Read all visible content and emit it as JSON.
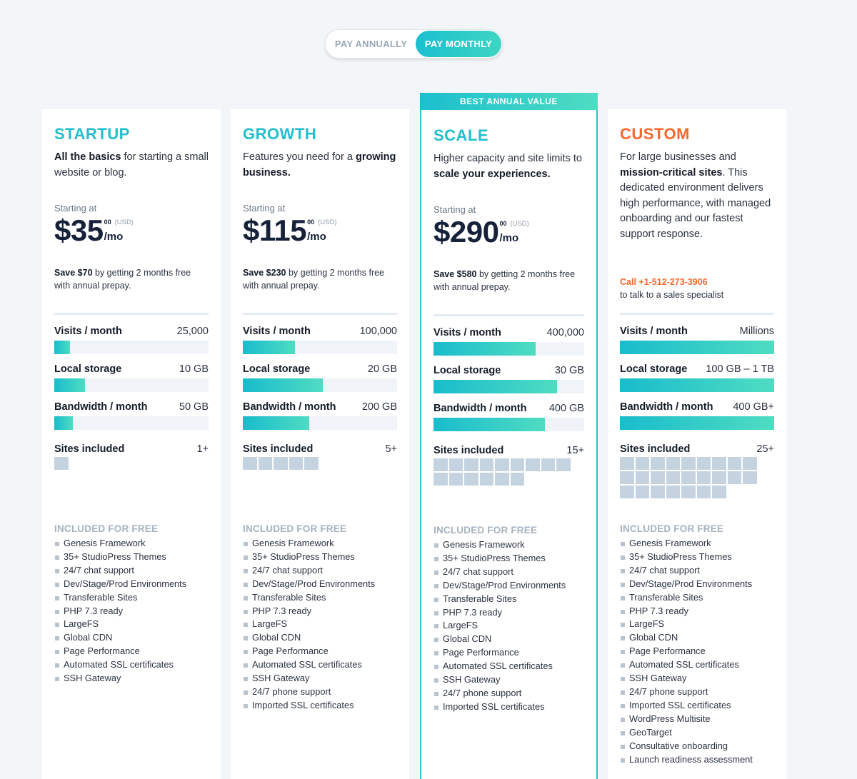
{
  "billing_toggle": {
    "annual_label": "PAY ANNUALLY",
    "monthly_label": "PAY MONTHLY",
    "selected": "monthly"
  },
  "colors": {
    "accent_teal": "#21bfcc",
    "accent_orange": "#f5672d",
    "bar_gradient_start": "#19bccd",
    "bar_gradient_end": "#4fdcc2",
    "site_block": "#c5d3e0"
  },
  "metric_labels": {
    "visits": "Visits / month",
    "storage": "Local storage",
    "bandwidth": "Bandwidth / month",
    "sites": "Sites included"
  },
  "included_title": "INCLUDED FOR FREE",
  "starting_label": "Starting at",
  "plans": [
    {
      "name": "STARTUP",
      "desc_bold": "All the basics",
      "desc_rest": " for starting a small website or blog.",
      "price": "$35",
      "cents": "00",
      "currency": "(USD)",
      "per": "/mo",
      "save_bold": "Save $70",
      "save_rest": " by getting 2 months free with annual prepay.",
      "visits": "25,000",
      "visits_pct": 10,
      "storage": "10 GB",
      "storage_pct": 20,
      "bandwidth": "50 GB",
      "bandwidth_pct": 12,
      "sites": "1+",
      "site_blocks": 1,
      "features": [
        "Genesis Framework",
        "35+ StudioPress Themes",
        "24/7 chat support",
        "Dev/Stage/Prod Environments",
        "Transferable Sites",
        "PHP 7.3 ready",
        "LargeFS",
        "Global CDN",
        "Page Performance",
        "Automated SSL certificates",
        "SSH Gateway"
      ]
    },
    {
      "name": "GROWTH",
      "desc_pre": "Features you need for a ",
      "desc_bold": "growing business.",
      "price": "$115",
      "cents": "00",
      "currency": "(USD)",
      "per": "/mo",
      "save_bold": "Save $230",
      "save_rest": " by getting 2 months free with annual prepay.",
      "visits": "100,000",
      "visits_pct": 34,
      "storage": "20 GB",
      "storage_pct": 52,
      "bandwidth": "200 GB",
      "bandwidth_pct": 43,
      "sites": "5+",
      "site_blocks": 5,
      "features": [
        "Genesis Framework",
        "35+ StudioPress Themes",
        "24/7 chat support",
        "Dev/Stage/Prod Environments",
        "Transferable Sites",
        "PHP 7.3 ready",
        "LargeFS",
        "Global CDN",
        "Page Performance",
        "Automated SSL certificates",
        "SSH Gateway",
        "24/7 phone support",
        "Imported SSL certificates"
      ]
    },
    {
      "name": "SCALE",
      "banner": "BEST ANNUAL VALUE",
      "desc_pre": "Higher capacity and site limits to ",
      "desc_bold": "scale your experiences.",
      "price": "$290",
      "cents": "00",
      "currency": "(USD)",
      "per": "/mo",
      "save_bold": "Save $580",
      "save_rest": " by getting 2 months free with annual prepay.",
      "visits": "400,000",
      "visits_pct": 68,
      "storage": "30 GB",
      "storage_pct": 82,
      "bandwidth": "400 GB",
      "bandwidth_pct": 74,
      "sites": "15+",
      "site_blocks": 15,
      "features": [
        "Genesis Framework",
        "35+ StudioPress Themes",
        "24/7 chat support",
        "Dev/Stage/Prod Environments",
        "Transferable Sites",
        "PHP 7.3 ready",
        "LargeFS",
        "Global CDN",
        "Page Performance",
        "Automated SSL certificates",
        "SSH Gateway",
        "24/7 phone support",
        "Imported SSL certificates"
      ]
    },
    {
      "name": "CUSTOM",
      "desc_pre": "For large businesses and ",
      "desc_bold": "mission-critical sites",
      "desc_rest": ". This dedicated environment delivers high performance, with managed onboarding and our fastest support response.",
      "call_phone": "Call +1-512-273-3906",
      "call_rest": "to talk to a sales specialist",
      "visits": "Millions",
      "visits_pct": 100,
      "storage": "100 GB – 1 TB",
      "storage_pct": 100,
      "bandwidth": "400 GB+",
      "bandwidth_pct": 100,
      "sites": "25+",
      "site_blocks": 25,
      "features": [
        "Genesis Framework",
        "35+ StudioPress Themes",
        "24/7 chat support",
        "Dev/Stage/Prod Environments",
        "Transferable Sites",
        "PHP 7.3 ready",
        "LargeFS",
        "Global CDN",
        "Page Performance",
        "Automated SSL certificates",
        "SSH Gateway",
        "24/7 phone support",
        "Imported SSL certificates",
        "WordPress Multisite",
        "GeoTarget",
        "Consultative onboarding",
        "Launch readiness assessment"
      ]
    }
  ]
}
